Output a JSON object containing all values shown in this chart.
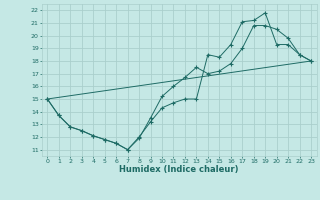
{
  "xlabel": "Humidex (Indice chaleur)",
  "bg_color": "#c5e8e5",
  "grid_color": "#aacfcc",
  "line_color": "#1e6b65",
  "xlim": [
    -0.5,
    23.5
  ],
  "ylim": [
    10.5,
    22.5
  ],
  "xticks": [
    0,
    1,
    2,
    3,
    4,
    5,
    6,
    7,
    8,
    9,
    10,
    11,
    12,
    13,
    14,
    15,
    16,
    17,
    18,
    19,
    20,
    21,
    22,
    23
  ],
  "yticks": [
    11,
    12,
    13,
    14,
    15,
    16,
    17,
    18,
    19,
    20,
    21,
    22
  ],
  "line1_x": [
    0,
    1,
    2,
    3,
    4,
    5,
    6,
    7,
    8,
    9,
    10,
    11,
    12,
    13,
    14,
    15,
    16,
    17,
    18,
    19,
    20,
    21,
    22,
    23
  ],
  "line1_y": [
    15,
    13.7,
    12.8,
    12.5,
    12.1,
    11.8,
    11.5,
    11.0,
    12.0,
    13.2,
    14.3,
    14.7,
    15.0,
    15.0,
    18.5,
    18.3,
    19.3,
    21.1,
    21.2,
    21.8,
    19.3,
    19.3,
    18.5,
    18.0
  ],
  "line2_x": [
    0,
    1,
    2,
    3,
    4,
    5,
    6,
    7,
    8,
    9,
    10,
    11,
    12,
    13,
    14,
    15,
    16,
    17,
    18,
    19,
    20,
    21,
    22,
    23
  ],
  "line2_y": [
    15,
    13.7,
    12.8,
    12.5,
    12.1,
    11.8,
    11.5,
    11.0,
    11.9,
    13.5,
    15.2,
    16.0,
    16.7,
    17.5,
    17.0,
    17.2,
    17.8,
    19.0,
    20.8,
    20.8,
    20.5,
    19.8,
    18.5,
    18.0
  ],
  "line3_x": [
    0,
    23
  ],
  "line3_y": [
    15.0,
    18.0
  ]
}
